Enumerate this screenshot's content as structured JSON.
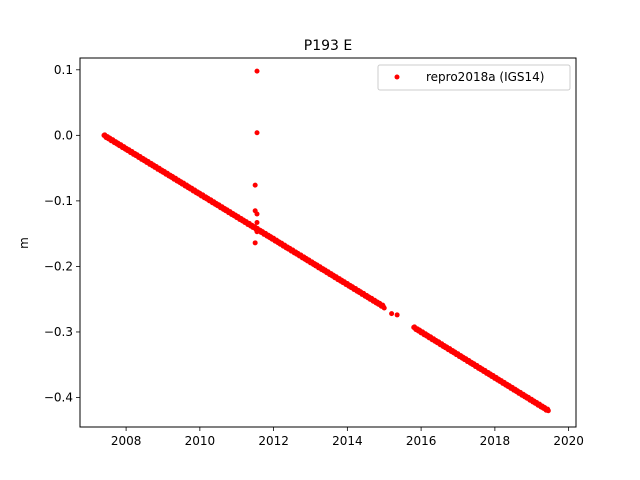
{
  "chart_data": {
    "type": "scatter",
    "title": "P193 E",
    "xlabel": "",
    "ylabel": "m",
    "xlim": [
      2006.75,
      2020.2
    ],
    "ylim": [
      -0.445,
      0.118
    ],
    "xticks": [
      2008,
      2010,
      2012,
      2014,
      2016,
      2018,
      2020
    ],
    "yticks": [
      0.1,
      0.0,
      -0.1,
      -0.2,
      -0.3,
      -0.4
    ],
    "ytick_labels": [
      "0.1",
      "0.0",
      "−0.1",
      "−0.2",
      "−0.3",
      "−0.4"
    ],
    "grid": false,
    "legend_position": "upper right",
    "series": [
      {
        "name": "repro2018a (IGS14)",
        "color": "#ff0000",
        "marker": "dot",
        "segments": [
          {
            "x_start": 2007.4,
            "x_end": 2015.0,
            "y_start": 0.0,
            "y_end": -0.262
          },
          {
            "x_start": 2015.8,
            "x_end": 2019.45,
            "y_start": -0.293,
            "y_end": -0.42
          }
        ],
        "points": [
          {
            "x": 2015.2,
            "y": -0.272
          },
          {
            "x": 2015.35,
            "y": -0.274
          },
          {
            "x": 2011.55,
            "y": 0.098
          },
          {
            "x": 2011.55,
            "y": 0.004
          },
          {
            "x": 2011.5,
            "y": -0.076
          },
          {
            "x": 2011.5,
            "y": -0.115
          },
          {
            "x": 2011.55,
            "y": -0.12
          },
          {
            "x": 2011.55,
            "y": -0.133
          },
          {
            "x": 2011.5,
            "y": -0.14
          },
          {
            "x": 2011.55,
            "y": -0.147
          },
          {
            "x": 2011.5,
            "y": -0.164
          }
        ]
      }
    ]
  }
}
